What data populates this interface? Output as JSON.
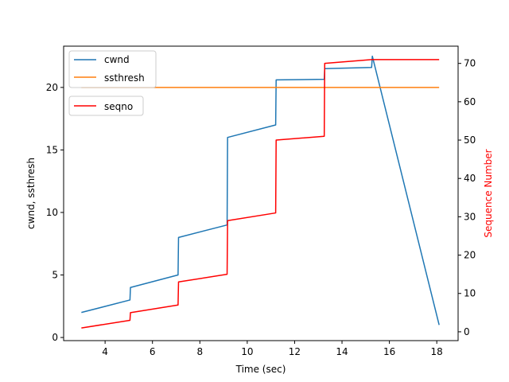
{
  "chart_data": {
    "type": "line",
    "title": "",
    "xlabel": "Time (sec)",
    "ylabel_left": "cwnd, ssthresh",
    "ylabel_right": "Sequence Number",
    "ylabel_right_color": "#ff0000",
    "xlim": [
      2.25,
      18.9
    ],
    "ylim_left": [
      -0.25,
      23.3
    ],
    "ylim_right": [
      -2.3,
      74.5
    ],
    "x_ticks": [
      4,
      6,
      8,
      10,
      12,
      14,
      16,
      18
    ],
    "y_left_ticks": [
      0,
      5,
      10,
      15,
      20
    ],
    "y_right_ticks": [
      0,
      10,
      20,
      30,
      40,
      50,
      60,
      70
    ],
    "grid": false,
    "series": [
      {
        "name": "cwnd",
        "axis": "left",
        "color": "#1f77b4",
        "points": [
          [
            3.0,
            2.0
          ],
          [
            5.05,
            3.0
          ],
          [
            5.07,
            4.0
          ],
          [
            7.08,
            5.0
          ],
          [
            7.1,
            8.0
          ],
          [
            9.15,
            9.0
          ],
          [
            9.17,
            16.0
          ],
          [
            11.2,
            17.0
          ],
          [
            11.22,
            20.6
          ],
          [
            13.25,
            20.65
          ],
          [
            13.27,
            21.5
          ],
          [
            15.25,
            21.6
          ],
          [
            15.28,
            22.5
          ],
          [
            18.1,
            1.0
          ]
        ]
      },
      {
        "name": "ssthresh",
        "axis": "left",
        "color": "#ff7f0e",
        "points": [
          [
            3.0,
            20.0
          ],
          [
            18.1,
            20.0
          ]
        ]
      },
      {
        "name": "seqno",
        "axis": "right",
        "color": "#ff0000",
        "points": [
          [
            3.0,
            1.0
          ],
          [
            5.05,
            3.0
          ],
          [
            5.07,
            5.0
          ],
          [
            7.08,
            7.0
          ],
          [
            7.1,
            13.0
          ],
          [
            9.15,
            15.0
          ],
          [
            9.17,
            29.0
          ],
          [
            11.2,
            31.0
          ],
          [
            11.22,
            50.0
          ],
          [
            13.25,
            51.0
          ],
          [
            13.27,
            70.0
          ],
          [
            15.25,
            71.0
          ],
          [
            18.1,
            71.0
          ]
        ]
      }
    ],
    "legends": [
      {
        "placement": "upper-left",
        "entries": [
          "cwnd",
          "ssthresh"
        ]
      },
      {
        "placement": "upper-left",
        "entries": [
          "seqno"
        ]
      }
    ]
  }
}
